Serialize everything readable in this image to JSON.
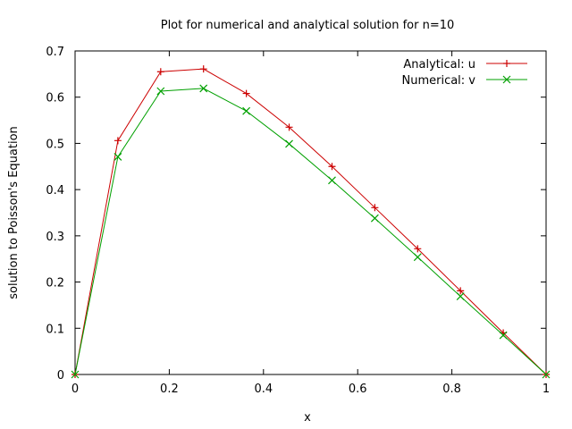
{
  "chart_data": {
    "type": "line",
    "title": "Plot for numerical and analytical solution for n=10",
    "xlabel": "x",
    "ylabel": "solution to Poisson's Equation",
    "xlim": [
      0,
      1
    ],
    "ylim": [
      0,
      0.7
    ],
    "xticks": [
      0,
      0.2,
      0.4,
      0.6,
      0.8,
      1
    ],
    "yticks": [
      0,
      0.1,
      0.2,
      0.3,
      0.4,
      0.5,
      0.6,
      0.7
    ],
    "xtick_labels": [
      "0",
      "0.2",
      "0.4",
      "0.6",
      "0.8",
      "1"
    ],
    "ytick_labels": [
      "0",
      "0.1",
      "0.2",
      "0.3",
      "0.4",
      "0.5",
      "0.6",
      "0.7"
    ],
    "grid": false,
    "legend_position": "top-right",
    "series": [
      {
        "name": "Analytical: u",
        "color": "#cc0000",
        "marker": "plus",
        "x": [
          0,
          0.0909,
          0.1818,
          0.2727,
          0.3636,
          0.4545,
          0.5455,
          0.6364,
          0.7273,
          0.8182,
          0.9091,
          1
        ],
        "y": [
          0,
          0.506,
          0.655,
          0.661,
          0.608,
          0.535,
          0.45,
          0.361,
          0.272,
          0.181,
          0.09,
          0
        ]
      },
      {
        "name": "Numerical: v",
        "color": "#00a000",
        "marker": "cross",
        "x": [
          0,
          0.0909,
          0.1818,
          0.2727,
          0.3636,
          0.4545,
          0.5455,
          0.6364,
          0.7273,
          0.8182,
          0.9091,
          1
        ],
        "y": [
          0,
          0.471,
          0.613,
          0.619,
          0.57,
          0.499,
          0.42,
          0.338,
          0.254,
          0.169,
          0.085,
          0
        ]
      }
    ]
  }
}
